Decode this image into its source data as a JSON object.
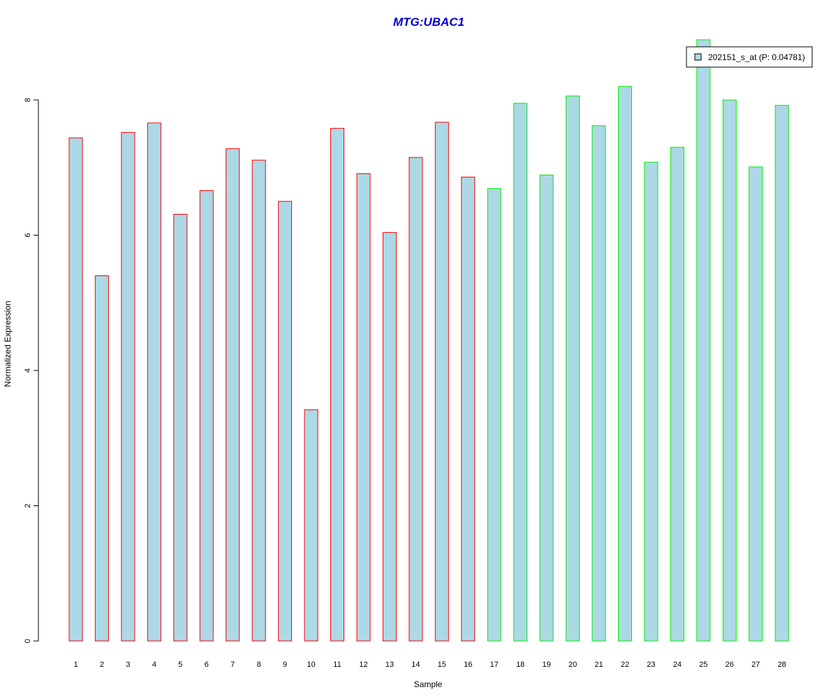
{
  "chart_data": {
    "type": "bar",
    "title": "MTG:UBAC1",
    "xlabel": "Sample",
    "ylabel": "Normalized Expression",
    "categories": [
      "1",
      "2",
      "3",
      "4",
      "5",
      "6",
      "7",
      "8",
      "9",
      "10",
      "11",
      "12",
      "13",
      "14",
      "15",
      "16",
      "17",
      "18",
      "19",
      "20",
      "21",
      "22",
      "23",
      "24",
      "25",
      "26",
      "27",
      "28"
    ],
    "series": [
      {
        "name": "202151_s_at (P: 0.04781)",
        "values": [
          7.44,
          5.4,
          7.52,
          7.66,
          6.31,
          6.66,
          7.28,
          7.11,
          6.5,
          3.42,
          7.58,
          6.91,
          6.04,
          7.15,
          7.67,
          6.86,
          6.69,
          7.95,
          6.89,
          8.06,
          7.62,
          8.2,
          7.08,
          7.3,
          8.89,
          8.0,
          7.01,
          7.92
        ]
      }
    ],
    "groups": [
      {
        "samples": [
          1,
          2,
          3,
          4,
          5,
          6,
          7,
          8,
          9,
          10,
          11,
          12,
          13,
          14,
          15,
          16
        ],
        "border_color": "#ff0000"
      },
      {
        "samples": [
          17,
          18,
          19,
          20,
          21,
          22,
          23,
          24,
          25,
          26,
          27,
          28
        ],
        "border_color": "#00ee00"
      }
    ],
    "y_ticks": [
      0,
      2,
      4,
      6,
      8
    ],
    "ylim": [
      0,
      8.0
    ],
    "grid": false,
    "legend_position": "top-right",
    "colors": {
      "bar_fill": "#add8e6",
      "title": "#0000cd",
      "axis": "#000000"
    }
  }
}
